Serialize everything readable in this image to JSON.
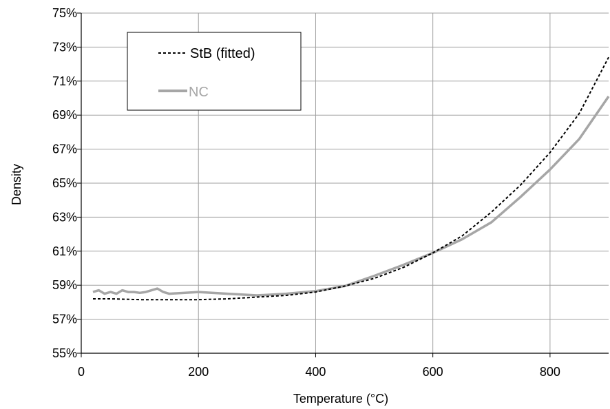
{
  "chart_data": {
    "type": "line",
    "title": "",
    "xlabel": "Temperature (°C)",
    "ylabel": "Density",
    "xlim": [
      0,
      900
    ],
    "ylim": [
      55,
      75
    ],
    "x_ticks": [
      0,
      200,
      400,
      600,
      800
    ],
    "x_tick_labels": [
      "0",
      "200",
      "400",
      "600",
      "800"
    ],
    "y_ticks": [
      55,
      57,
      59,
      61,
      63,
      65,
      67,
      69,
      71,
      73,
      75
    ],
    "y_tick_labels": [
      "55%",
      "57%",
      "59%",
      "61%",
      "63%",
      "65%",
      "67%",
      "69%",
      "71%",
      "73%",
      "75%"
    ],
    "grid": true,
    "legend_position": "top-left",
    "series": [
      {
        "name": "StB (fitted)",
        "style": "dashed",
        "color": "#000000",
        "x": [
          20,
          50,
          100,
          150,
          200,
          250,
          300,
          350,
          400,
          450,
          500,
          550,
          600,
          650,
          700,
          750,
          800,
          850,
          900
        ],
        "y": [
          58.2,
          58.2,
          58.15,
          58.15,
          58.15,
          58.2,
          58.3,
          58.4,
          58.6,
          58.95,
          59.4,
          60.05,
          60.9,
          61.9,
          63.3,
          64.9,
          66.8,
          69.1,
          72.4
        ]
      },
      {
        "name": "NC",
        "style": "solid",
        "color": "#a6a6a6",
        "x": [
          20,
          30,
          40,
          50,
          60,
          70,
          80,
          90,
          100,
          110,
          120,
          130,
          140,
          150,
          200,
          250,
          300,
          350,
          400,
          450,
          500,
          550,
          600,
          650,
          700,
          750,
          800,
          850,
          900
        ],
        "y": [
          58.6,
          58.7,
          58.5,
          58.6,
          58.5,
          58.7,
          58.6,
          58.6,
          58.55,
          58.6,
          58.7,
          58.8,
          58.6,
          58.5,
          58.6,
          58.5,
          58.4,
          58.5,
          58.65,
          58.95,
          59.55,
          60.2,
          60.9,
          61.7,
          62.7,
          64.2,
          65.8,
          67.6,
          70.1
        ]
      }
    ]
  }
}
